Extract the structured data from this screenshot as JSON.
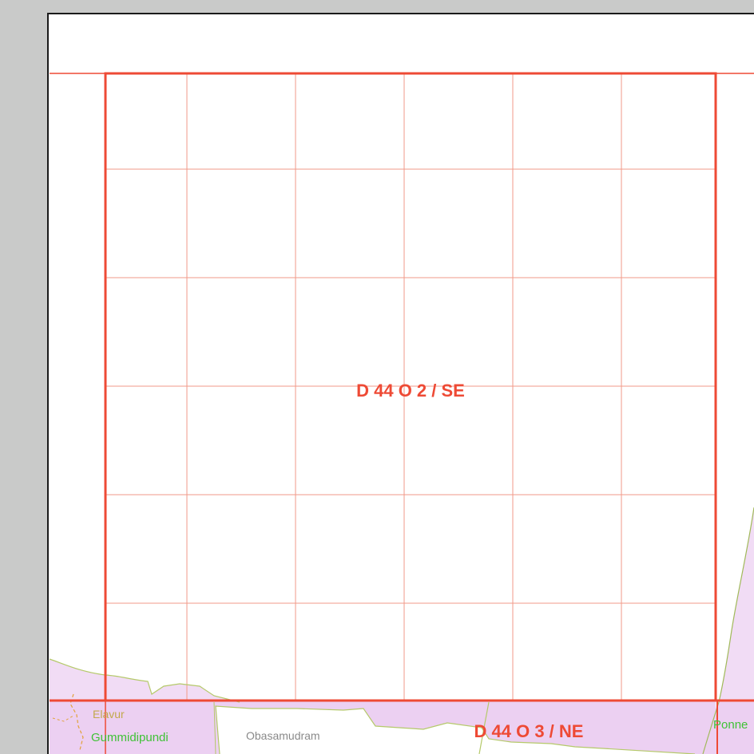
{
  "map": {
    "sheets": {
      "main": "D 44 O 2 / SE",
      "south": "D 44 O 3 / NE"
    },
    "places": {
      "elavur": "Elavur",
      "gummidipundi": "Gummidipundi",
      "obasamudram": "Obasamudram",
      "ponneri": "Ponne"
    },
    "colors": {
      "grid_line": "#f29a88",
      "sheet_border": "#ee4a35",
      "sheet_label": "#ee4a35",
      "region_fill": "#f1dcf5",
      "region_fill_alt": "#ecd0f2",
      "boundary": "#b5c96a",
      "boundary_dash": "#e2a23a",
      "place_green": "#3fc236",
      "place_grey": "#8a8a8a",
      "place_olive": "#c2a94d",
      "paper": "#ffffff",
      "scan_margin": "#c9cac9"
    }
  }
}
